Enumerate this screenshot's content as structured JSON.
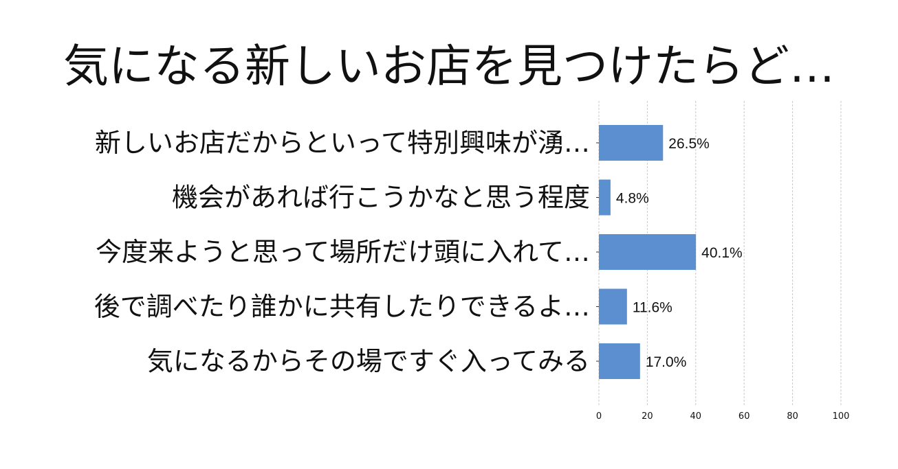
{
  "chart_data": {
    "type": "bar",
    "orientation": "horizontal",
    "title": "気になる新しいお店を見つけたらど…",
    "categories": [
      "新しいお店だからといって特別興味が湧…",
      "機会があれば行こうかなと思う程度",
      "今度来ようと思って場所だけ頭に入れて…",
      "後で調べたり誰かに共有したりできるよ…",
      "気になるからその場ですぐ入ってみる"
    ],
    "values": [
      26.5,
      4.8,
      40.1,
      11.6,
      17.0
    ],
    "value_labels": [
      "26.5%",
      "4.8%",
      "40.1%",
      "11.6%",
      "17.0%"
    ],
    "xlim": [
      0,
      100
    ],
    "xticks": [
      0,
      20,
      40,
      60,
      80,
      100
    ],
    "grid": "vertical dashed",
    "bar_color": "#5b8fd0"
  }
}
